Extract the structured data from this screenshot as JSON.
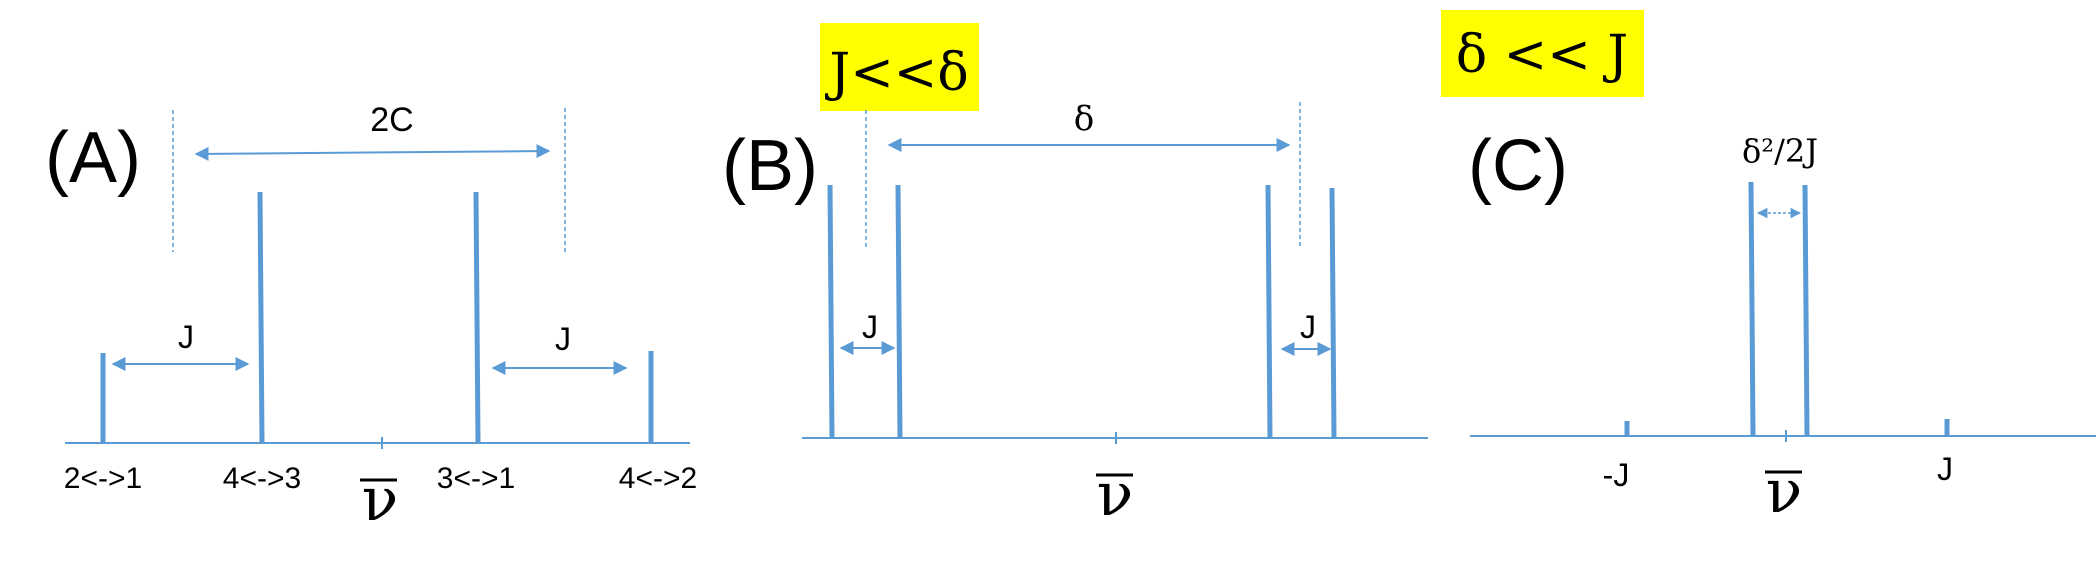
{
  "panels": {
    "a": {
      "label": "(A)",
      "span_label": "2C",
      "j_left": "J",
      "j_right": "J",
      "axis_mean": "ν",
      "transitions": [
        "2<->1",
        "4<->3",
        "3<->1",
        "4<->2"
      ]
    },
    "b": {
      "label": "(B)",
      "badge": "J<<δ",
      "span_label": "δ",
      "j_left": "J",
      "j_right": "J",
      "axis_mean": "ν"
    },
    "c": {
      "label": "(C)",
      "badge": "δ << J",
      "gap_label": "δ²/2J",
      "tick_minus_j": "-J",
      "tick_j": "J",
      "axis_mean": "ν"
    }
  },
  "colors": {
    "line": "#5b9bd5",
    "badge": "#ffff00",
    "text": "#000000"
  }
}
